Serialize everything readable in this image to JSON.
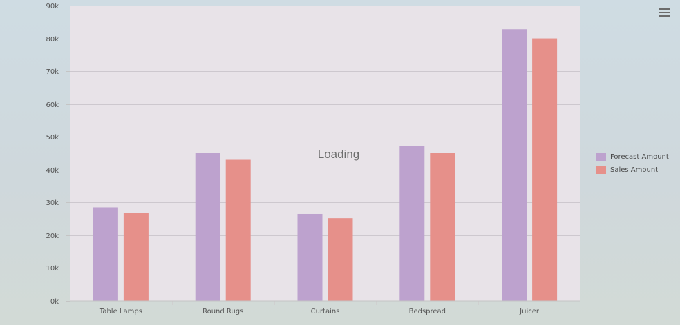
{
  "chart_data": {
    "type": "bar",
    "categories": [
      "Table Lamps",
      "Round Rugs",
      "Curtains",
      "Bedspread",
      "Juicer"
    ],
    "series": [
      {
        "name": "Forecast Amount",
        "color": "#bda2ce",
        "values": [
          28500,
          45000,
          26500,
          47300,
          82800
        ]
      },
      {
        "name": "Sales Amount",
        "color": "#e6908a",
        "values": [
          26800,
          43000,
          25200,
          45000,
          80000
        ]
      }
    ],
    "ylim": [
      0,
      90000
    ],
    "yticks": [
      0,
      10000,
      20000,
      30000,
      40000,
      50000,
      60000,
      70000,
      80000,
      90000
    ],
    "ytick_labels": [
      "0k",
      "10k",
      "20k",
      "30k",
      "40k",
      "50k",
      "60k",
      "70k",
      "80k",
      "90k"
    ],
    "grid": true,
    "legend_position": "right",
    "plot_background": "#e8e3e8",
    "overlay_text": "Loading"
  },
  "menu": {
    "icon": "hamburger-menu-icon"
  }
}
